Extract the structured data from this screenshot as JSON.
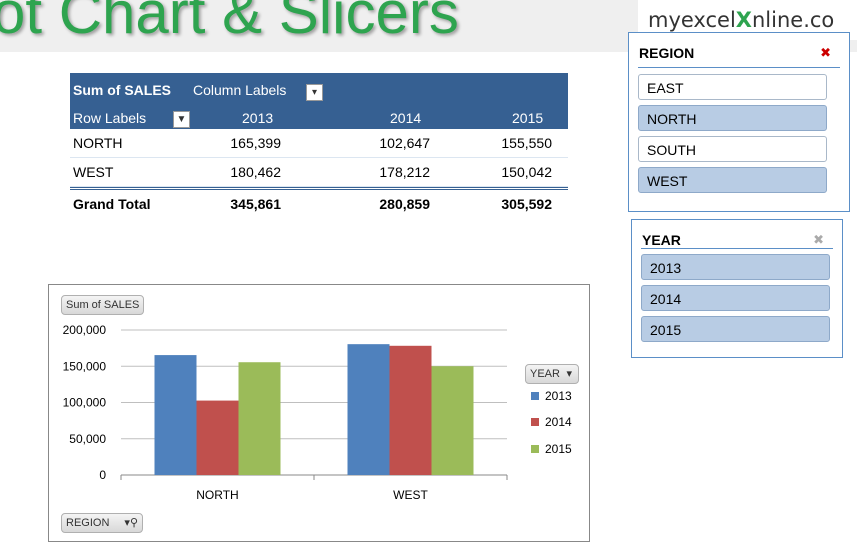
{
  "banner": {
    "title": "ot Chart & Slicers"
  },
  "logo": {
    "pre": "myexcel",
    "x": "X",
    "post": "nline.co"
  },
  "pivot": {
    "value_field": "Sum of SALES",
    "column_labels": "Column Labels",
    "row_labels": "Row Labels",
    "years": [
      "2013",
      "2014",
      "2015"
    ],
    "rows": [
      {
        "label": "NORTH",
        "values": [
          "165,399",
          "102,647",
          "155,550"
        ]
      },
      {
        "label": "WEST",
        "values": [
          "180,462",
          "178,212",
          "150,042"
        ]
      }
    ],
    "grand_total": {
      "label": "Grand Total",
      "values": [
        "345,861",
        "280,859",
        "305,592"
      ]
    }
  },
  "chart_data": {
    "type": "bar",
    "categories": [
      "NORTH",
      "WEST"
    ],
    "series": [
      {
        "name": "2013",
        "values": [
          165399,
          180462
        ],
        "color": "#4f81bd"
      },
      {
        "name": "2014",
        "values": [
          102647,
          178212
        ],
        "color": "#c0504d"
      },
      {
        "name": "2015",
        "values": [
          155550,
          150042
        ],
        "color": "#9bbb59"
      }
    ],
    "yticks": [
      "0",
      "50,000",
      "100,000",
      "150,000",
      "200,000"
    ],
    "ylim": [
      0,
      200000
    ],
    "value_button": "Sum of SALES",
    "legend_button": "YEAR",
    "axis_button": "REGION",
    "legend_placement": "right"
  },
  "slicers": {
    "region": {
      "title": "REGION",
      "items": [
        {
          "label": "EAST",
          "selected": false
        },
        {
          "label": "NORTH",
          "selected": true
        },
        {
          "label": "SOUTH",
          "selected": false
        },
        {
          "label": "WEST",
          "selected": true
        }
      ]
    },
    "year": {
      "title": "YEAR",
      "items": [
        {
          "label": "2013",
          "selected": true
        },
        {
          "label": "2014",
          "selected": true
        },
        {
          "label": "2015",
          "selected": true
        }
      ]
    }
  }
}
